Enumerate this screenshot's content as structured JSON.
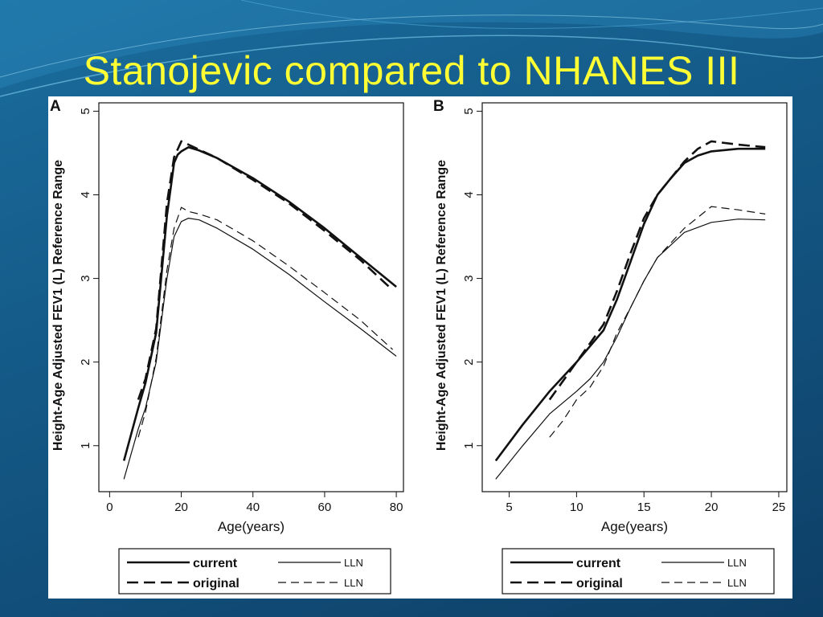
{
  "slide": {
    "title": "Stanojevic compared to NHANES III"
  },
  "colors": {
    "title": "#ffff33",
    "background": "#155c8a",
    "panel": "#ffffff",
    "lines": "#111111"
  },
  "chart_data": [
    {
      "panel_label": "A",
      "type": "line",
      "xlabel": "Age(years)",
      "ylabel": "Height-Age Adjusted FEV1 (L) Reference Range",
      "xlim": [
        -3,
        82
      ],
      "ylim": [
        0.45,
        5.1
      ],
      "xticks": [
        0,
        20,
        40,
        60,
        80
      ],
      "yticks": [
        1,
        2,
        3,
        4,
        5
      ],
      "grid": false,
      "legend_position": "bottom",
      "series": [
        {
          "name": "current",
          "style": "solid-thick",
          "x": [
            4,
            8,
            10,
            13,
            16,
            18,
            19,
            20,
            22,
            25,
            30,
            40,
            50,
            60,
            70,
            80
          ],
          "y": [
            0.82,
            1.45,
            1.75,
            2.35,
            3.75,
            4.38,
            4.48,
            4.52,
            4.57,
            4.53,
            4.44,
            4.2,
            3.92,
            3.6,
            3.25,
            2.9
          ]
        },
        {
          "name": "original",
          "style": "dashed-thick",
          "x": [
            8,
            10,
            13,
            16,
            18,
            20,
            22,
            25,
            30,
            40,
            50,
            60,
            70,
            79
          ],
          "y": [
            1.55,
            1.8,
            2.4,
            3.9,
            4.45,
            4.64,
            4.6,
            4.54,
            4.44,
            4.18,
            3.9,
            3.57,
            3.22,
            2.86
          ]
        },
        {
          "name": "LLN",
          "style": "solid-thin",
          "x": [
            4,
            8,
            10,
            13,
            16,
            18,
            20,
            22,
            25,
            30,
            40,
            50,
            60,
            70,
            80
          ],
          "y": [
            0.6,
            1.2,
            1.45,
            2.0,
            3.0,
            3.5,
            3.68,
            3.72,
            3.7,
            3.6,
            3.35,
            3.05,
            2.72,
            2.4,
            2.07
          ]
        },
        {
          "name": "LLN",
          "style": "dashed-thin",
          "x": [
            8,
            10,
            13,
            16,
            18,
            20,
            22,
            25,
            30,
            40,
            50,
            60,
            70,
            79
          ],
          "y": [
            1.1,
            1.4,
            2.05,
            3.1,
            3.6,
            3.85,
            3.8,
            3.77,
            3.7,
            3.45,
            3.15,
            2.83,
            2.5,
            2.15
          ]
        }
      ]
    },
    {
      "panel_label": "B",
      "type": "line",
      "xlabel": "Age(years)",
      "ylabel": "Height-Age Adjusted FEV1 (L) Reference Range",
      "xlim": [
        3,
        25.6
      ],
      "ylim": [
        0.45,
        5.1
      ],
      "xticks": [
        5,
        10,
        15,
        20,
        25
      ],
      "yticks": [
        1,
        2,
        3,
        4,
        5
      ],
      "grid": false,
      "legend_position": "bottom",
      "series": [
        {
          "name": "current",
          "style": "solid-thick",
          "x": [
            4,
            6,
            8,
            10,
            12,
            13,
            14,
            15,
            16,
            17,
            18,
            19,
            20,
            22,
            24
          ],
          "y": [
            0.82,
            1.25,
            1.65,
            2.0,
            2.38,
            2.75,
            3.2,
            3.65,
            4.0,
            4.2,
            4.38,
            4.47,
            4.52,
            4.55,
            4.55
          ]
        },
        {
          "name": "original",
          "style": "dashed-thick",
          "x": [
            8,
            10,
            12,
            13,
            14,
            15,
            16,
            17,
            18,
            19,
            20,
            22,
            24
          ],
          "y": [
            1.55,
            2.0,
            2.45,
            2.85,
            3.3,
            3.72,
            4.0,
            4.2,
            4.4,
            4.55,
            4.64,
            4.6,
            4.57
          ]
        },
        {
          "name": "LLN",
          "style": "solid-thin",
          "x": [
            4,
            6,
            8,
            10,
            11,
            12,
            13,
            14,
            15,
            16,
            18,
            20,
            22,
            24
          ],
          "y": [
            0.6,
            1.0,
            1.38,
            1.65,
            1.8,
            2.0,
            2.3,
            2.65,
            2.97,
            3.25,
            3.55,
            3.67,
            3.71,
            3.7
          ]
        },
        {
          "name": "LLN",
          "style": "dashed-thin",
          "x": [
            8,
            9,
            10,
            11,
            12,
            13,
            14,
            15,
            16,
            18,
            20,
            22,
            24
          ],
          "y": [
            1.1,
            1.3,
            1.55,
            1.7,
            1.95,
            2.35,
            2.65,
            2.97,
            3.25,
            3.6,
            3.86,
            3.82,
            3.77
          ]
        }
      ]
    }
  ]
}
